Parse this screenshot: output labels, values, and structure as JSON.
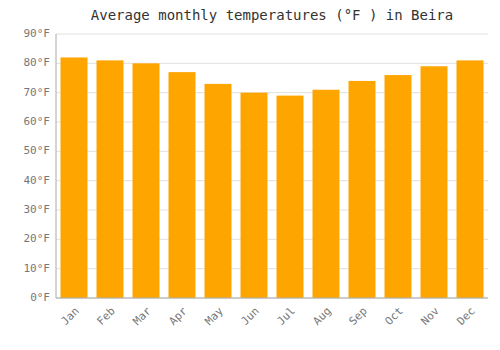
{
  "chart_data": {
    "type": "bar",
    "title": "Average monthly temperatures (°F ) in Beira",
    "categories": [
      "Jan",
      "Feb",
      "Mar",
      "Apr",
      "May",
      "Jun",
      "Jul",
      "Aug",
      "Sep",
      "Oct",
      "Nov",
      "Dec"
    ],
    "values": [
      82,
      81,
      80,
      77,
      73,
      70,
      69,
      71,
      74,
      76,
      79,
      81
    ],
    "color": "#FFA500",
    "ylim": [
      0,
      90
    ],
    "yticks": [
      {
        "value": 0,
        "label": "0°F"
      },
      {
        "value": 10,
        "label": "10°F"
      },
      {
        "value": 20,
        "label": "20°F"
      },
      {
        "value": 30,
        "label": "30°F"
      },
      {
        "value": 40,
        "label": "40°F"
      },
      {
        "value": 50,
        "label": "50°F"
      },
      {
        "value": 60,
        "label": "60°F"
      },
      {
        "value": 70,
        "label": "70°F"
      },
      {
        "value": 80,
        "label": "80°F"
      },
      {
        "value": 90,
        "label": "90°F"
      }
    ],
    "grid": true
  }
}
